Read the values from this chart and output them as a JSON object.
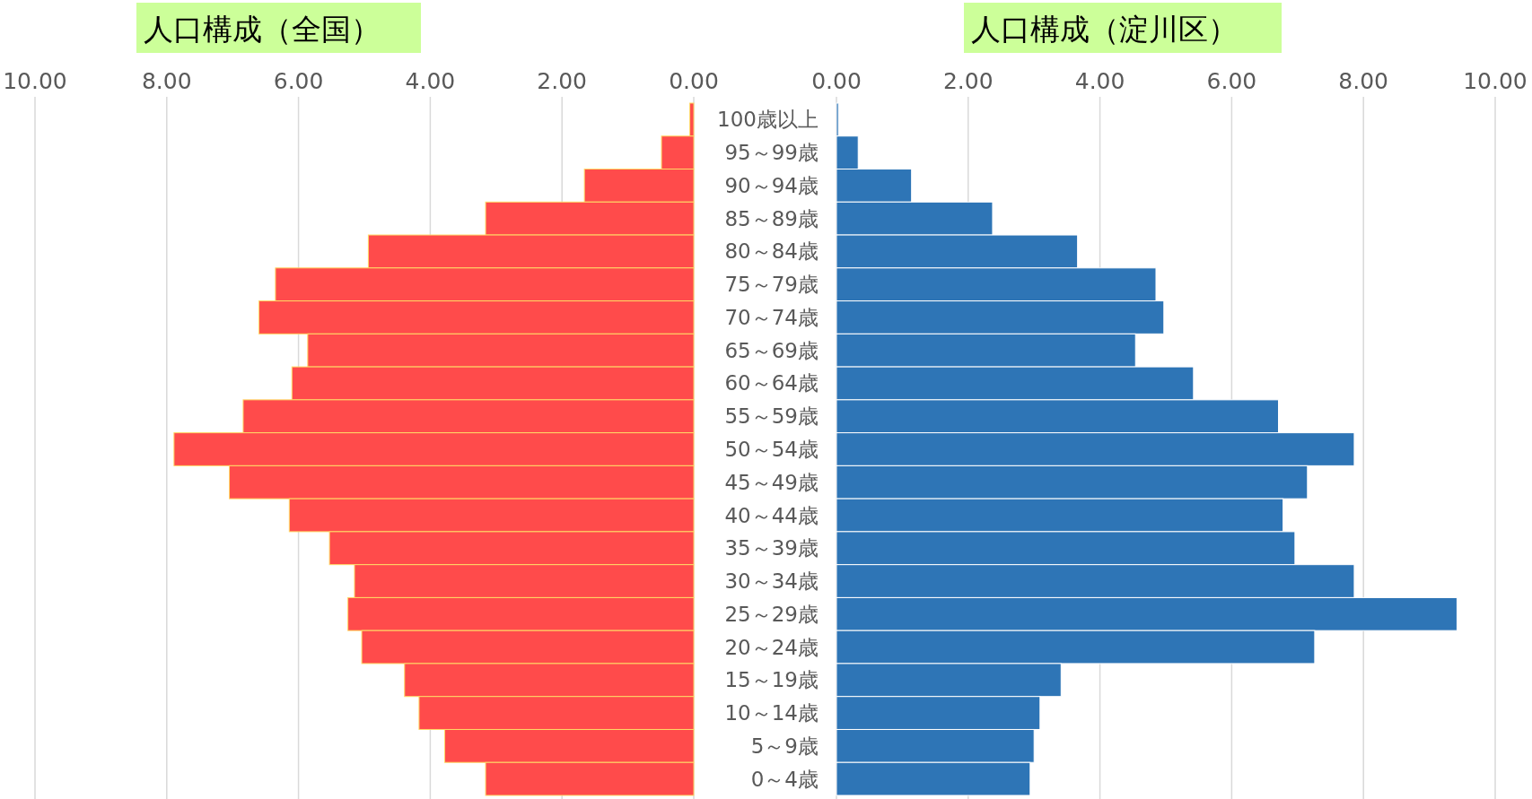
{
  "chart_data": [
    {
      "type": "bar",
      "orientation": "horizontal",
      "title": "人口構成（全国）",
      "categories": [
        null,
        null,
        null,
        null,
        null,
        null,
        null,
        null,
        null,
        null,
        null,
        null,
        null,
        null,
        null,
        null,
        null,
        null,
        null,
        null,
        null
      ],
      "values": [
        0.06,
        0.49,
        1.66,
        3.16,
        4.94,
        6.35,
        6.6,
        5.86,
        6.1,
        6.84,
        7.89,
        7.05,
        6.14,
        5.53,
        5.15,
        5.25,
        5.04,
        4.39,
        4.17,
        3.78,
        3.16
      ],
      "color": "#ff4b4b",
      "xlim": [
        10,
        0
      ],
      "xticks": [
        {
          "value": 10,
          "label": "10.00"
        },
        {
          "value": 8,
          "label": "8.00"
        },
        {
          "value": 6,
          "label": "6.00"
        },
        {
          "value": 4,
          "label": "4.00"
        },
        {
          "value": 2,
          "label": "2.00"
        },
        {
          "value": 0,
          "label": "0.00"
        }
      ],
      "grid": "x",
      "tick_labels": "x"
    },
    {
      "type": "bar",
      "orientation": "horizontal",
      "title": "人口構成（淀川区）",
      "categories": [
        "100歳以上",
        "95～99歳",
        "90～94歳",
        "85～89歳",
        "80～84歳",
        "75～79歳",
        "70～74歳",
        "65～69歳",
        "60～64歳",
        "55～59歳",
        "50～54歳",
        "45～49歳",
        "40～44歳",
        "35～39歳",
        "30～34歳",
        "25～29歳",
        "20～24歳",
        "15～19歳",
        "10～14歳",
        "5～9歳",
        "0～4歳"
      ],
      "values": [
        0.03,
        0.33,
        1.14,
        2.37,
        3.66,
        4.85,
        4.97,
        4.54,
        5.42,
        6.71,
        7.86,
        7.15,
        6.78,
        6.96,
        7.86,
        9.42,
        7.26,
        3.41,
        3.09,
        3.0,
        2.94
      ],
      "color": "#2e75b6",
      "xlim": [
        0,
        10
      ],
      "xticks": [
        {
          "value": 0,
          "label": "0.00"
        },
        {
          "value": 2,
          "label": "2.00"
        },
        {
          "value": 4,
          "label": "4.00"
        },
        {
          "value": 6,
          "label": "6.00"
        },
        {
          "value": 8,
          "label": "8.00"
        },
        {
          "value": 10,
          "label": "10.00"
        }
      ],
      "grid": "x"
    }
  ]
}
